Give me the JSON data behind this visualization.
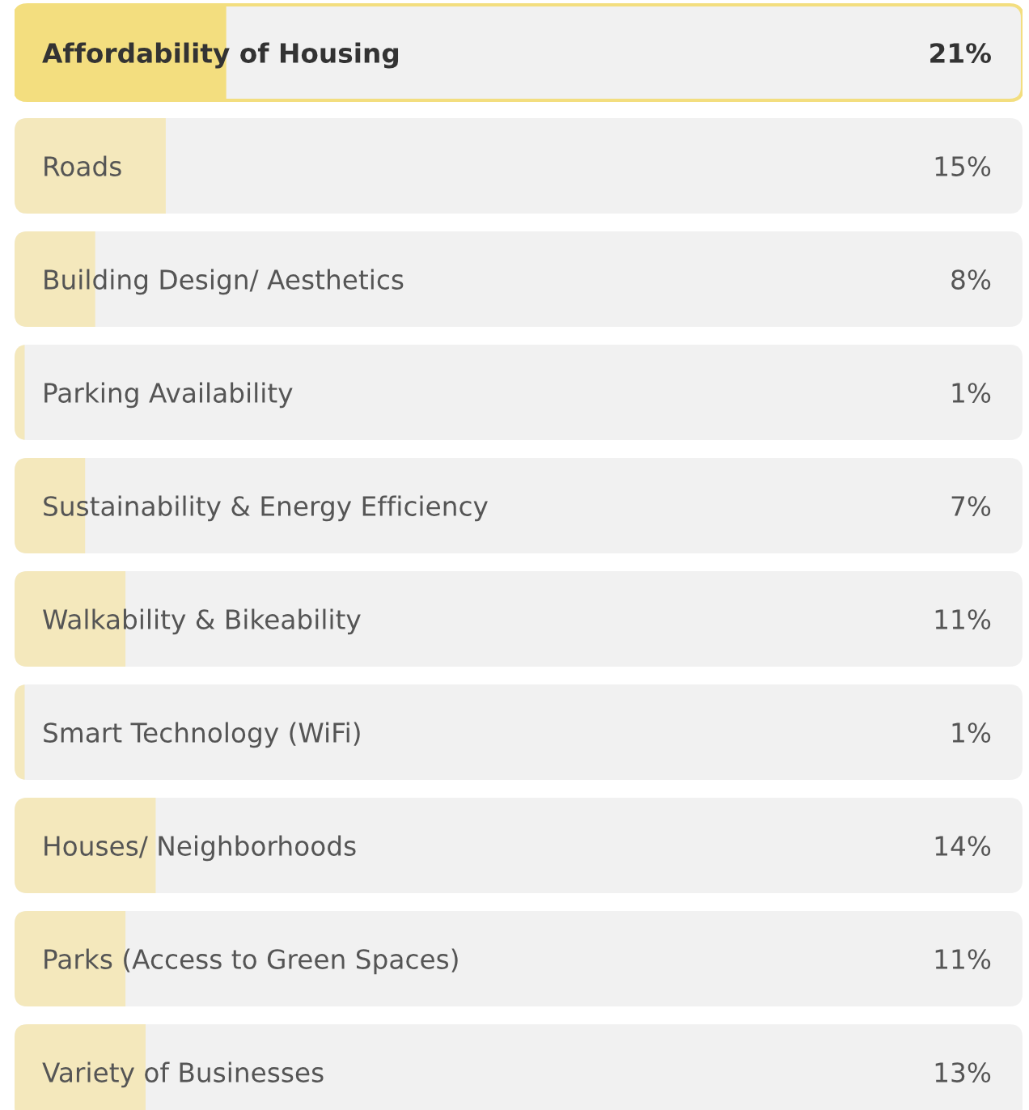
{
  "chart_data": {
    "type": "bar",
    "orientation": "horizontal",
    "categories": [
      "Affordability of Housing",
      "Roads",
      "Building Design/ Aesthetics",
      "Parking Availability",
      "Sustainability & Energy Efficiency",
      "Walkability & Bikeability",
      "Smart Technology (WiFi)",
      "Houses/ Neighborhoods",
      "Parks (Access to Green Spaces)",
      "Variety of Businesses"
    ],
    "values": [
      21,
      15,
      8,
      1,
      7,
      11,
      1,
      14,
      11,
      13
    ],
    "value_labels": [
      "21%",
      "15%",
      "8%",
      "1%",
      "7%",
      "11%",
      "1%",
      "14%",
      "11%",
      "13%"
    ],
    "colors": [
      "#f3de7f",
      "#f4e8bc",
      "#f4e8bc",
      "#f4e8bc",
      "#f4e8bc",
      "#f4e8bc",
      "#f4e8bc",
      "#f4e8bc",
      "#f4e8bc",
      "#f4e8bc"
    ],
    "xlim": [
      0,
      100
    ],
    "tick_labels": false
  }
}
